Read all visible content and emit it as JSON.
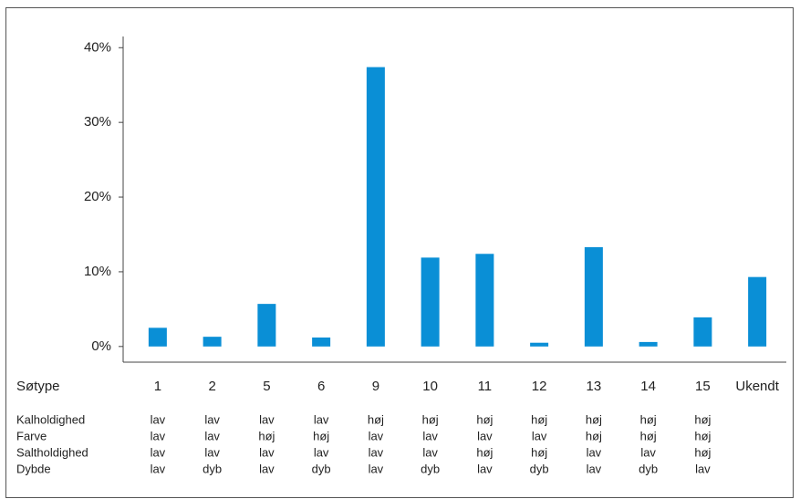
{
  "chart_data": {
    "type": "bar",
    "category_label": "Søtype",
    "categories": [
      "1",
      "2",
      "5",
      "6",
      "9",
      "10",
      "11",
      "12",
      "13",
      "14",
      "15",
      "Ukendt"
    ],
    "values": [
      2.5,
      1.3,
      5.7,
      1.2,
      37.4,
      11.9,
      12.4,
      0.5,
      13.3,
      0.6,
      3.9,
      9.3
    ],
    "color": "#0a8fd6",
    "ylim": [
      -2.1,
      41.5
    ],
    "yticks": [
      {
        "value": 0,
        "label": "0%"
      },
      {
        "value": 10,
        "label": "10%"
      },
      {
        "value": 20,
        "label": "20%"
      },
      {
        "value": 30,
        "label": "30%"
      },
      {
        "value": 40,
        "label": "40%"
      }
    ],
    "category_table": [
      {
        "name": "Kalholdighed",
        "values": [
          "lav",
          "lav",
          "lav",
          "lav",
          "høj",
          "høj",
          "høj",
          "høj",
          "høj",
          "høj",
          "høj"
        ]
      },
      {
        "name": "Farve",
        "values": [
          "lav",
          "lav",
          "høj",
          "høj",
          "lav",
          "lav",
          "lav",
          "lav",
          "høj",
          "høj",
          "høj"
        ]
      },
      {
        "name": "Saltholdighed",
        "values": [
          "lav",
          "lav",
          "lav",
          "lav",
          "lav",
          "lav",
          "høj",
          "høj",
          "lav",
          "lav",
          "høj"
        ]
      },
      {
        "name": "Dybde",
        "values": [
          "lav",
          "dyb",
          "lav",
          "dyb",
          "lav",
          "dyb",
          "lav",
          "dyb",
          "lav",
          "dyb",
          "lav"
        ]
      }
    ]
  }
}
